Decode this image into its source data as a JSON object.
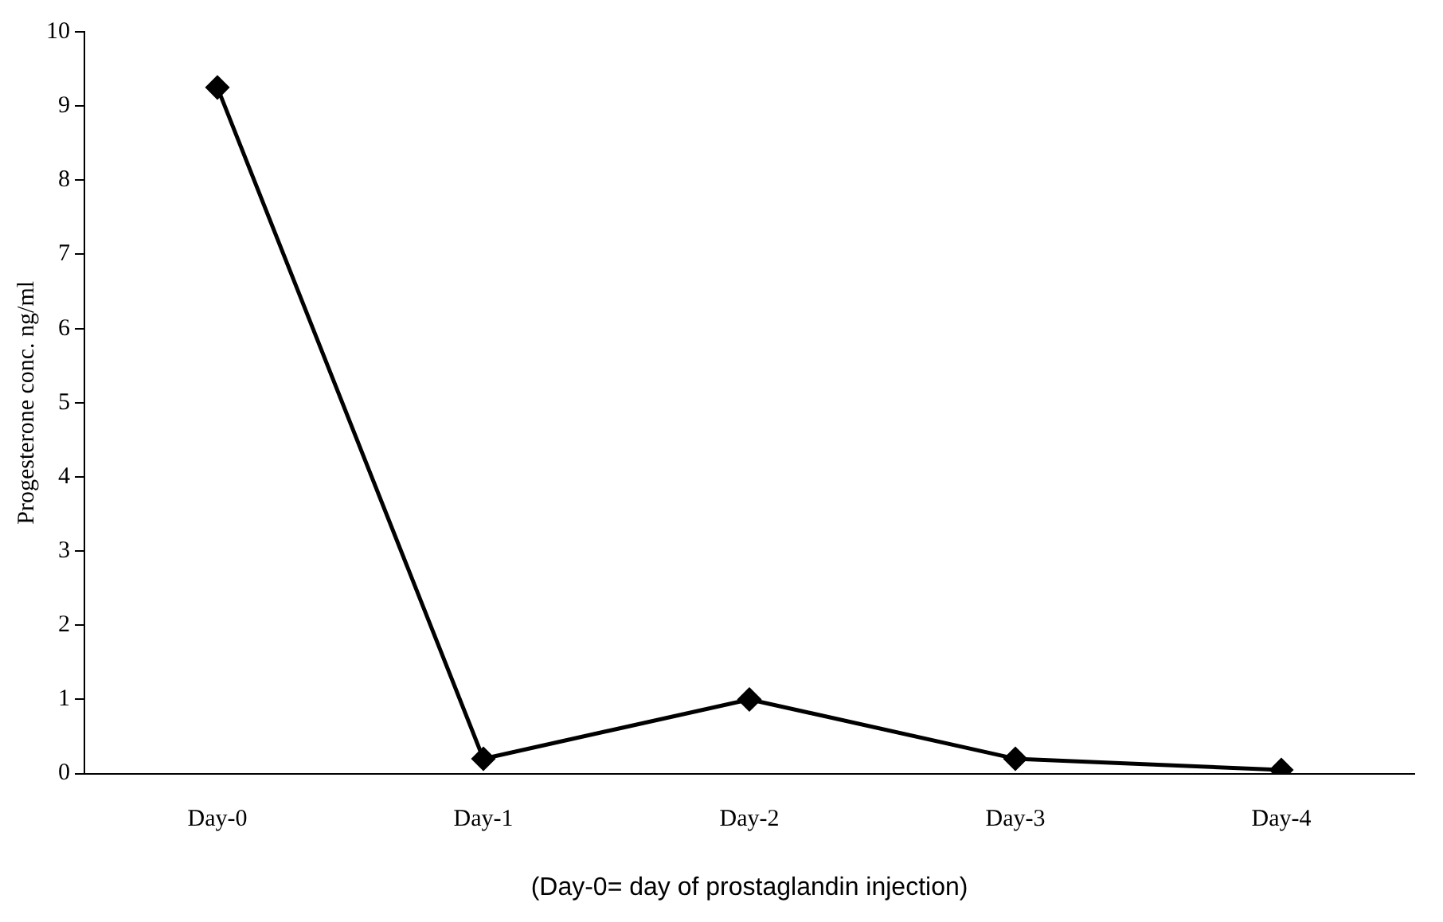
{
  "chart_data": {
    "type": "line",
    "xlabel": "(Day-0= day of prostaglandin injection)",
    "ylabel": "Progesterone conc. ng/ml",
    "categories": [
      "Day-0",
      "Day-1",
      "Day-2",
      "Day-3",
      "Day-4"
    ],
    "series": [
      {
        "color": "#000000",
        "values": [
          9.25,
          0.2,
          1.0,
          0.2,
          0.05
        ]
      }
    ],
    "ylim": [
      0,
      10
    ],
    "yticks": [
      0,
      1,
      2,
      3,
      4,
      5,
      6,
      7,
      8,
      9,
      10
    ],
    "grid": false,
    "legend": false,
    "marker": "diamond",
    "line_style": "solid"
  }
}
